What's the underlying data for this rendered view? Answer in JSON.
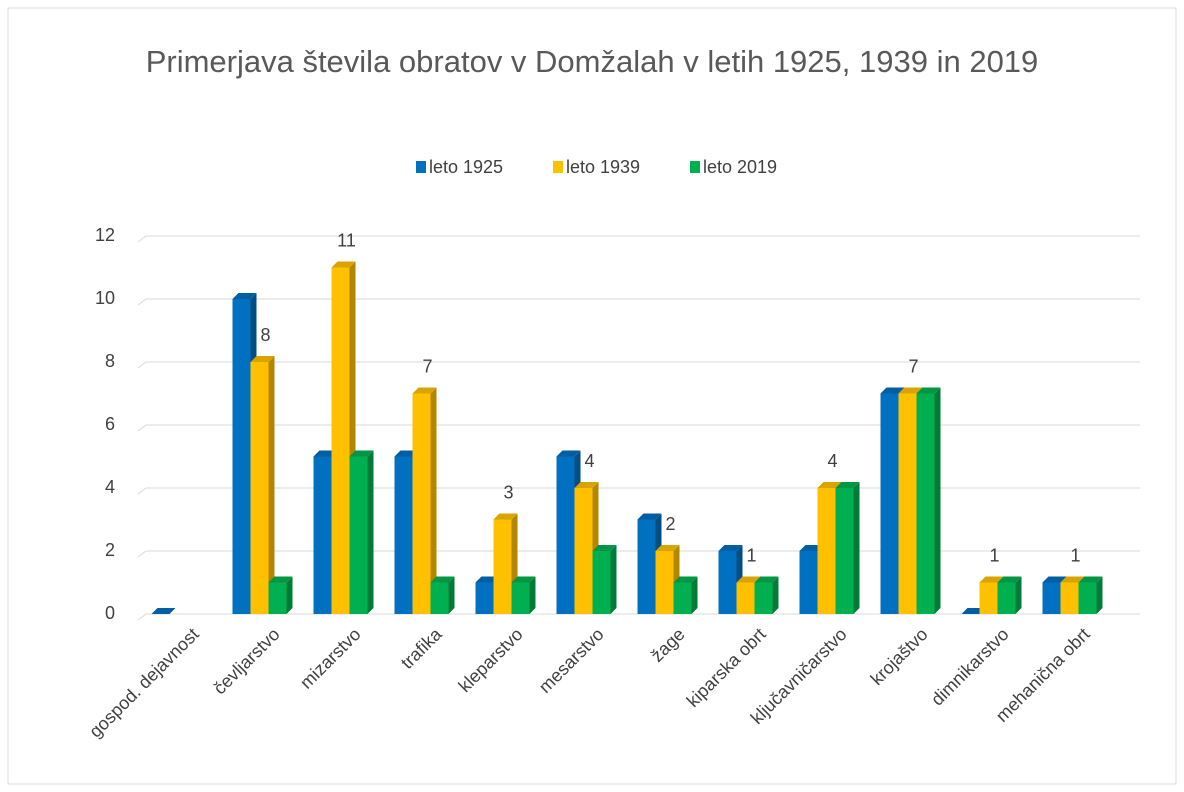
{
  "chart_data": {
    "type": "bar3d",
    "title": "Primerjava števila obratov v Domžalah v letih 1925, 1939 in 2019",
    "categories": [
      "gospod. dejavnost",
      "čevljarstvo",
      "mizarstvo",
      "trafika",
      "kleparstvo",
      "mesarstvo",
      "žage",
      "kiparska obrt",
      "ključavničarstvo",
      "krojaštvo",
      "dimnikarstvo",
      "mehanična obrt"
    ],
    "series": [
      {
        "name": "leto 1925",
        "color": "#0070c0",
        "values": [
          0,
          10,
          5,
          5,
          1,
          5,
          3,
          2,
          2,
          7,
          0,
          1
        ],
        "show_labels": false
      },
      {
        "name": "leto 1939",
        "color": "#ffc000",
        "values": [
          null,
          8,
          11,
          7,
          3,
          4,
          2,
          1,
          4,
          7,
          1,
          1
        ],
        "show_labels": true
      },
      {
        "name": "leto 2019",
        "color": "#00b050",
        "values": [
          null,
          1,
          5,
          1,
          1,
          2,
          1,
          1,
          4,
          7,
          1,
          1
        ],
        "show_labels": false
      }
    ],
    "ylim": [
      0,
      12
    ],
    "yticks": [
      0,
      2,
      4,
      6,
      8,
      10,
      12
    ],
    "grid": true,
    "legend": "top"
  }
}
